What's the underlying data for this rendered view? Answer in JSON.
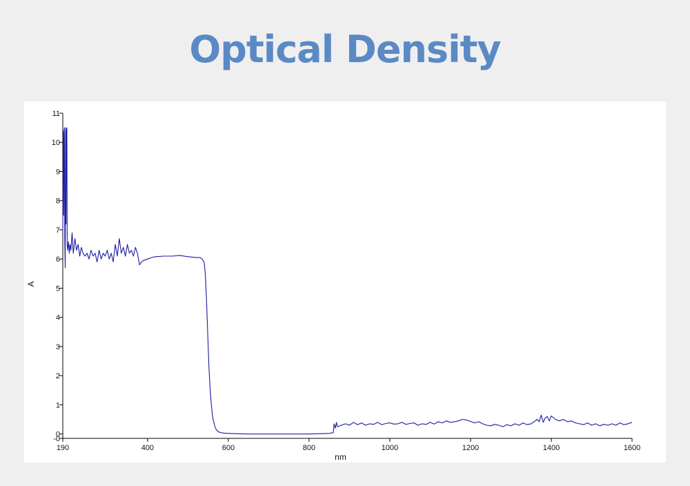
{
  "page": {
    "title": "Optical Density"
  },
  "chart_data": {
    "type": "line",
    "title": "",
    "xlabel": "nm",
    "ylabel": "A",
    "xlim": [
      190,
      1600
    ],
    "ylim": [
      -0.15,
      11
    ],
    "grid": false,
    "legend": "none",
    "line_color": "#1a1aa0",
    "x_ticks": [
      190,
      400,
      600,
      800,
      1000,
      1200,
      1400,
      1600
    ],
    "y_ticks": [
      {
        "value": -0.15,
        "label": "-0"
      },
      {
        "value": 0,
        "label": "0"
      },
      {
        "value": 1,
        "label": "1"
      },
      {
        "value": 2,
        "label": "2"
      },
      {
        "value": 3,
        "label": "3"
      },
      {
        "value": 4,
        "label": "4"
      },
      {
        "value": 5,
        "label": "5"
      },
      {
        "value": 6,
        "label": "6"
      },
      {
        "value": 7,
        "label": "7"
      },
      {
        "value": 8,
        "label": "8"
      },
      {
        "value": 9,
        "label": "9"
      },
      {
        "value": 10,
        "label": "10"
      },
      {
        "value": 11,
        "label": "11"
      }
    ],
    "series": [
      {
        "x": [
          190,
          191,
          192,
          193,
          194,
          195,
          196,
          197,
          198,
          199,
          200,
          201,
          202,
          204,
          206,
          208,
          210,
          213,
          216,
          220,
          224,
          228,
          232,
          236,
          240,
          245,
          250,
          255,
          260,
          265,
          270,
          275,
          280,
          285,
          290,
          295,
          300,
          305,
          310,
          315,
          320,
          325,
          330,
          335,
          340,
          345,
          350,
          355,
          360,
          365,
          370,
          375,
          380,
          385,
          390,
          400,
          410,
          420,
          440,
          460,
          480,
          500,
          520,
          530,
          535,
          540,
          543,
          546,
          549,
          552,
          555,
          558,
          561,
          564,
          567,
          570,
          575,
          580,
          590,
          600,
          620,
          650,
          700,
          750,
          800,
          850,
          860,
          862,
          865,
          868,
          870,
          880,
          890,
          900,
          910,
          920,
          930,
          940,
          950,
          960,
          970,
          980,
          990,
          1000,
          1010,
          1020,
          1030,
          1040,
          1050,
          1060,
          1070,
          1080,
          1090,
          1100,
          1110,
          1120,
          1130,
          1140,
          1150,
          1160,
          1170,
          1180,
          1190,
          1200,
          1210,
          1220,
          1230,
          1240,
          1250,
          1260,
          1270,
          1280,
          1290,
          1300,
          1310,
          1320,
          1330,
          1340,
          1350,
          1360,
          1365,
          1370,
          1375,
          1380,
          1385,
          1390,
          1395,
          1400,
          1410,
          1420,
          1430,
          1440,
          1450,
          1460,
          1470,
          1480,
          1490,
          1500,
          1510,
          1520,
          1530,
          1540,
          1550,
          1560,
          1570,
          1580,
          1590,
          1600
        ],
        "y": [
          6.9,
          10.4,
          7.5,
          10.3,
          10.5,
          6.6,
          5.7,
          10.5,
          7.2,
          10.4,
          10.5,
          6.5,
          6.3,
          6.6,
          6.2,
          6.5,
          6.3,
          6.9,
          6.2,
          6.7,
          6.3,
          6.5,
          6.1,
          6.4,
          6.2,
          6.1,
          6.2,
          6.0,
          6.3,
          6.1,
          6.2,
          5.9,
          6.3,
          6.0,
          6.2,
          6.1,
          6.3,
          6.0,
          6.2,
          5.9,
          6.5,
          6.1,
          6.7,
          6.2,
          6.4,
          6.1,
          6.5,
          6.2,
          6.3,
          6.1,
          6.4,
          6.2,
          5.8,
          5.9,
          5.95,
          6.0,
          6.05,
          6.08,
          6.1,
          6.1,
          6.12,
          6.08,
          6.05,
          6.05,
          6.0,
          5.9,
          5.5,
          4.6,
          3.4,
          2.3,
          1.5,
          1.0,
          0.6,
          0.4,
          0.25,
          0.15,
          0.08,
          0.05,
          0.03,
          0.02,
          0.01,
          0.0,
          0.0,
          0.0,
          0.0,
          0.02,
          0.05,
          0.35,
          0.2,
          0.4,
          0.25,
          0.3,
          0.35,
          0.3,
          0.4,
          0.32,
          0.38,
          0.3,
          0.35,
          0.33,
          0.4,
          0.32,
          0.36,
          0.38,
          0.34,
          0.35,
          0.4,
          0.33,
          0.36,
          0.38,
          0.3,
          0.35,
          0.33,
          0.4,
          0.34,
          0.42,
          0.38,
          0.45,
          0.4,
          0.42,
          0.45,
          0.5,
          0.48,
          0.43,
          0.38,
          0.42,
          0.35,
          0.3,
          0.28,
          0.33,
          0.3,
          0.25,
          0.32,
          0.28,
          0.35,
          0.3,
          0.38,
          0.32,
          0.35,
          0.45,
          0.5,
          0.42,
          0.65,
          0.4,
          0.55,
          0.6,
          0.45,
          0.62,
          0.5,
          0.45,
          0.5,
          0.42,
          0.45,
          0.38,
          0.35,
          0.32,
          0.38,
          0.3,
          0.35,
          0.28,
          0.33,
          0.3,
          0.35,
          0.3,
          0.38,
          0.32,
          0.35,
          0.4
        ]
      }
    ]
  }
}
